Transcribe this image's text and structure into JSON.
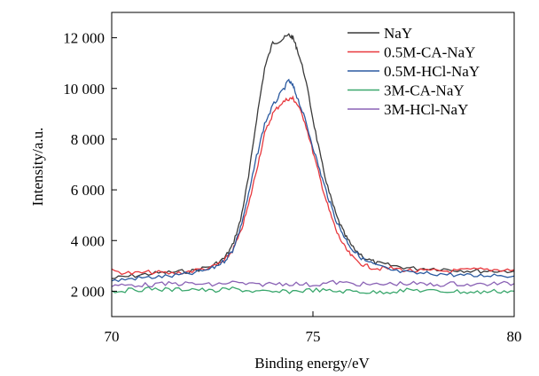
{
  "chart_data": {
    "type": "line",
    "xlabel": "Binding energy/eV",
    "ylabel": "Intensity/a.u.",
    "xlim": [
      70,
      80
    ],
    "ylim": [
      1000,
      13000
    ],
    "xticks": [
      {
        "value": 70,
        "label": "70"
      },
      {
        "value": 75,
        "label": "75"
      },
      {
        "value": 80,
        "label": "80"
      }
    ],
    "yticks": [
      {
        "value": 2000,
        "label": "2 000"
      },
      {
        "value": 4000,
        "label": "4 000"
      },
      {
        "value": 6000,
        "label": "6 000"
      },
      {
        "value": 8000,
        "label": "8 000"
      },
      {
        "value": 10000,
        "label": "10 000"
      },
      {
        "value": 12000,
        "label": "12 000"
      }
    ],
    "grid": false,
    "legend_position": "top-right",
    "series": [
      {
        "name": "NaY",
        "color": "#3a3a3a",
        "x": [
          70,
          70.5,
          71,
          71.5,
          72,
          72.5,
          72.8,
          73,
          73.2,
          73.4,
          73.6,
          73.8,
          74,
          74.2,
          74.4,
          74.5,
          74.6,
          74.8,
          75,
          75.2,
          75.4,
          75.6,
          75.8,
          76,
          76.3,
          76.6,
          77,
          77.5,
          78,
          78.5,
          79,
          79.5,
          80
        ],
        "y": [
          2500,
          2600,
          2700,
          2750,
          2800,
          3000,
          3300,
          3800,
          4800,
          6500,
          8800,
          10800,
          11800,
          11900,
          12100,
          12000,
          11600,
          10500,
          8800,
          7200,
          5900,
          4900,
          4200,
          3700,
          3300,
          3100,
          3000,
          2900,
          2900,
          2850,
          2800,
          2800,
          2800
        ]
      },
      {
        "name": "0.5M-CA-NaY",
        "color": "#e8383d",
        "x": [
          70,
          70.5,
          71,
          71.5,
          72,
          72.5,
          72.8,
          73,
          73.2,
          73.4,
          73.6,
          73.8,
          74,
          74.2,
          74.4,
          74.5,
          74.6,
          74.8,
          75,
          75.2,
          75.4,
          75.6,
          75.8,
          76,
          76.3,
          76.6,
          77,
          77.5,
          78,
          78.5,
          79,
          79.5,
          80
        ],
        "y": [
          2800,
          2700,
          2750,
          2700,
          2800,
          2950,
          3200,
          3600,
          4300,
          5400,
          6800,
          8200,
          9000,
          9400,
          9600,
          9600,
          9400,
          8700,
          7500,
          6300,
          5200,
          4300,
          3700,
          3300,
          3000,
          2900,
          2900,
          2800,
          2800,
          2800,
          2850,
          2850,
          2850
        ]
      },
      {
        "name": "0.5M-HCl-NaY",
        "color": "#2b5aa0",
        "x": [
          70,
          70.5,
          71,
          71.5,
          72,
          72.5,
          72.8,
          73,
          73.2,
          73.4,
          73.6,
          73.8,
          74,
          74.2,
          74.4,
          74.5,
          74.6,
          74.8,
          75,
          75.2,
          75.4,
          75.6,
          75.8,
          76,
          76.3,
          76.6,
          77,
          77.5,
          78,
          78.5,
          79,
          79.5,
          80
        ],
        "y": [
          2400,
          2500,
          2550,
          2600,
          2700,
          2900,
          3200,
          3600,
          4500,
          5800,
          7300,
          8600,
          9300,
          9800,
          10300,
          10100,
          9700,
          8800,
          7700,
          6600,
          5600,
          4700,
          4100,
          3600,
          3200,
          3000,
          2800,
          2700,
          2700,
          2650,
          2600,
          2650,
          2600
        ]
      },
      {
        "name": "3M-CA-NaY",
        "color": "#3aa76d",
        "x": [
          70,
          70.5,
          71,
          71.5,
          72,
          72.5,
          73,
          73.5,
          74,
          74.5,
          75,
          75.5,
          76,
          76.5,
          77,
          77.5,
          78,
          78.5,
          79,
          79.5,
          80
        ],
        "y": [
          2000,
          2050,
          2100,
          2050,
          2100,
          2000,
          2100,
          2000,
          1950,
          2000,
          2050,
          2000,
          2000,
          1950,
          2000,
          2050,
          2000,
          2000,
          1950,
          2000,
          2000
        ]
      },
      {
        "name": "3M-HCl-NaY",
        "color": "#8a62b5",
        "x": [
          70,
          70.5,
          71,
          71.5,
          72,
          72.5,
          73,
          73.5,
          74,
          74.5,
          75,
          75.5,
          76,
          76.5,
          77,
          77.5,
          78,
          78.5,
          79,
          79.5,
          80
        ],
        "y": [
          2200,
          2250,
          2250,
          2300,
          2300,
          2250,
          2350,
          2250,
          2300,
          2300,
          2250,
          2350,
          2300,
          2250,
          2300,
          2300,
          2250,
          2300,
          2250,
          2300,
          2300
        ]
      }
    ]
  }
}
